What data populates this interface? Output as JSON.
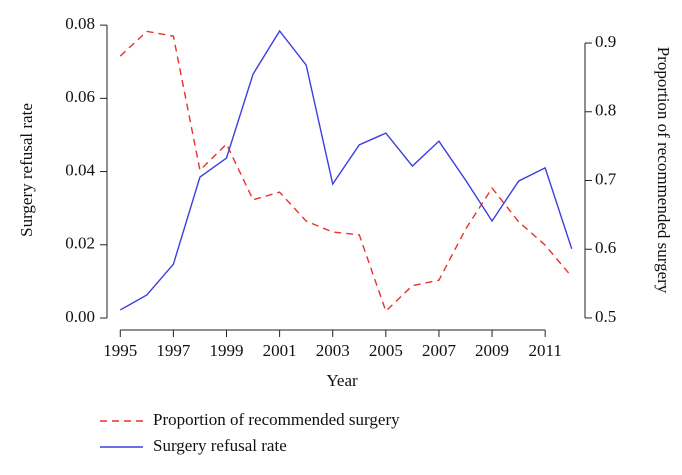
{
  "chart_data": {
    "type": "line",
    "x_label": "Year",
    "y_label": "Surgery refusal rate",
    "y2_label": "Proportion of recommended surgery",
    "x": [
      1995,
      1996,
      1997,
      1998,
      1999,
      2000,
      2001,
      2002,
      2003,
      2004,
      2005,
      2006,
      2007,
      2008,
      2009,
      2010,
      2011,
      2012
    ],
    "series": [
      {
        "name": "Proportion of recommended surgery",
        "color": "#e8322e",
        "dashed": true,
        "axis": "y2",
        "values": [
          0.881,
          0.917,
          0.91,
          0.715,
          0.753,
          0.672,
          0.683,
          0.641,
          0.625,
          0.621,
          0.51,
          0.547,
          0.555,
          0.629,
          0.689,
          0.64,
          0.606,
          0.56
        ]
      },
      {
        "name": "Surgery refusal rate",
        "color": "#3b3fe0",
        "dashed": false,
        "axis": "y",
        "values": [
          0.0022,
          0.0063,
          0.0147,
          0.0385,
          0.0437,
          0.0666,
          0.0784,
          0.0691,
          0.0366,
          0.0473,
          0.0505,
          0.0415,
          0.0483,
          0.0377,
          0.0265,
          0.0374,
          0.041,
          0.0189
        ]
      }
    ],
    "xlim": [
      1994.5,
      2012.5
    ],
    "xticks": [
      1995,
      1997,
      1999,
      2001,
      2003,
      2005,
      2007,
      2009,
      2011
    ],
    "ylim": [
      -0.00328,
      0.0814
    ],
    "yticks": [
      {
        "value": 0,
        "label": "0.00"
      },
      0.02,
      0.04,
      0.06,
      0.08
    ],
    "y2lim": [
      0.4825,
      0.9335
    ],
    "y2ticks": [
      0.5,
      0.6,
      0.7,
      0.8,
      0.9
    ]
  }
}
